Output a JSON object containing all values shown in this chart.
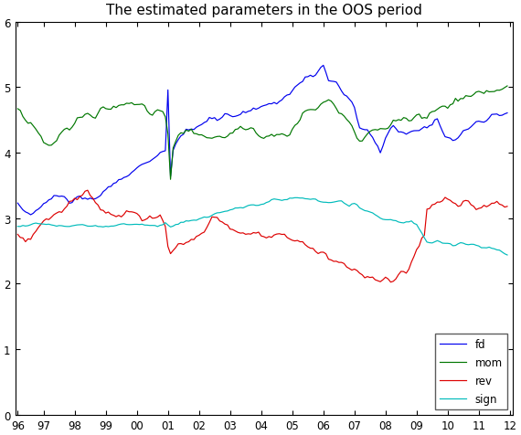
{
  "title": "The estimated parameters in the OOS period",
  "ylim": [
    0,
    6
  ],
  "yticks": [
    0,
    1,
    2,
    3,
    4,
    5,
    6
  ],
  "xtick_labels": [
    "96",
    "97",
    "98",
    "99",
    "00",
    "01",
    "02",
    "03",
    "04",
    "05",
    "06",
    "07",
    "08",
    "09",
    "10",
    "11",
    "12"
  ],
  "colors": {
    "fd": "#0000ee",
    "mom": "#007700",
    "rev": "#dd0000",
    "sign": "#00bbbb"
  },
  "legend_labels": [
    "fd",
    "mom",
    "rev",
    "sign"
  ],
  "background_color": "#ffffff",
  "title_fontsize": 11
}
